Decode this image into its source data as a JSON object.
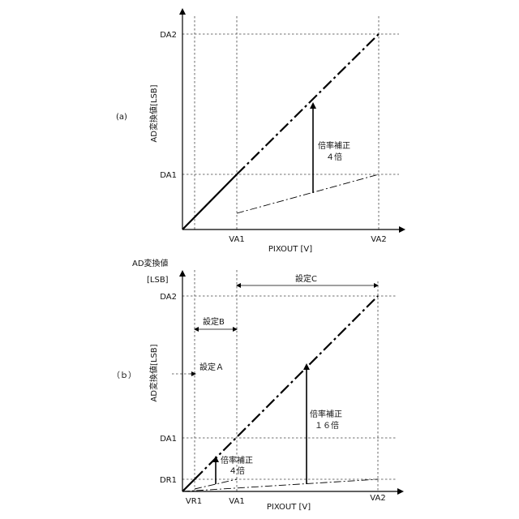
{
  "panel_a": {
    "marker": "(a)",
    "y_axis_label": "AD変換値[LSB]",
    "x_axis_label": "PIXOUT [V]",
    "ticks": {
      "da2": "DA2",
      "da1": "DA1",
      "va1": "VA1",
      "va2": "VA2"
    },
    "correction": {
      "line1": "倍率補正",
      "line2": "４倍"
    }
  },
  "panel_b": {
    "marker": "（ｂ）",
    "top_label_1": "AD変換値",
    "top_label_2": "[LSB]",
    "y_axis_label": "AD変換値[LSB]",
    "x_axis_label": "PIXOUT [V]",
    "ticks": {
      "da2": "DA2",
      "da1": "DA1",
      "dr1": "DR1",
      "vr1": "VR1",
      "va1": "VA1",
      "va2": "VA2"
    },
    "settings": {
      "a": "設定Ａ",
      "b": "設定B",
      "c": "設定C"
    },
    "correction_16": {
      "line1": "倍率補正",
      "line2": "１６倍"
    },
    "correction_4": {
      "line1": "倍率補正",
      "line2": "４倍"
    }
  }
}
